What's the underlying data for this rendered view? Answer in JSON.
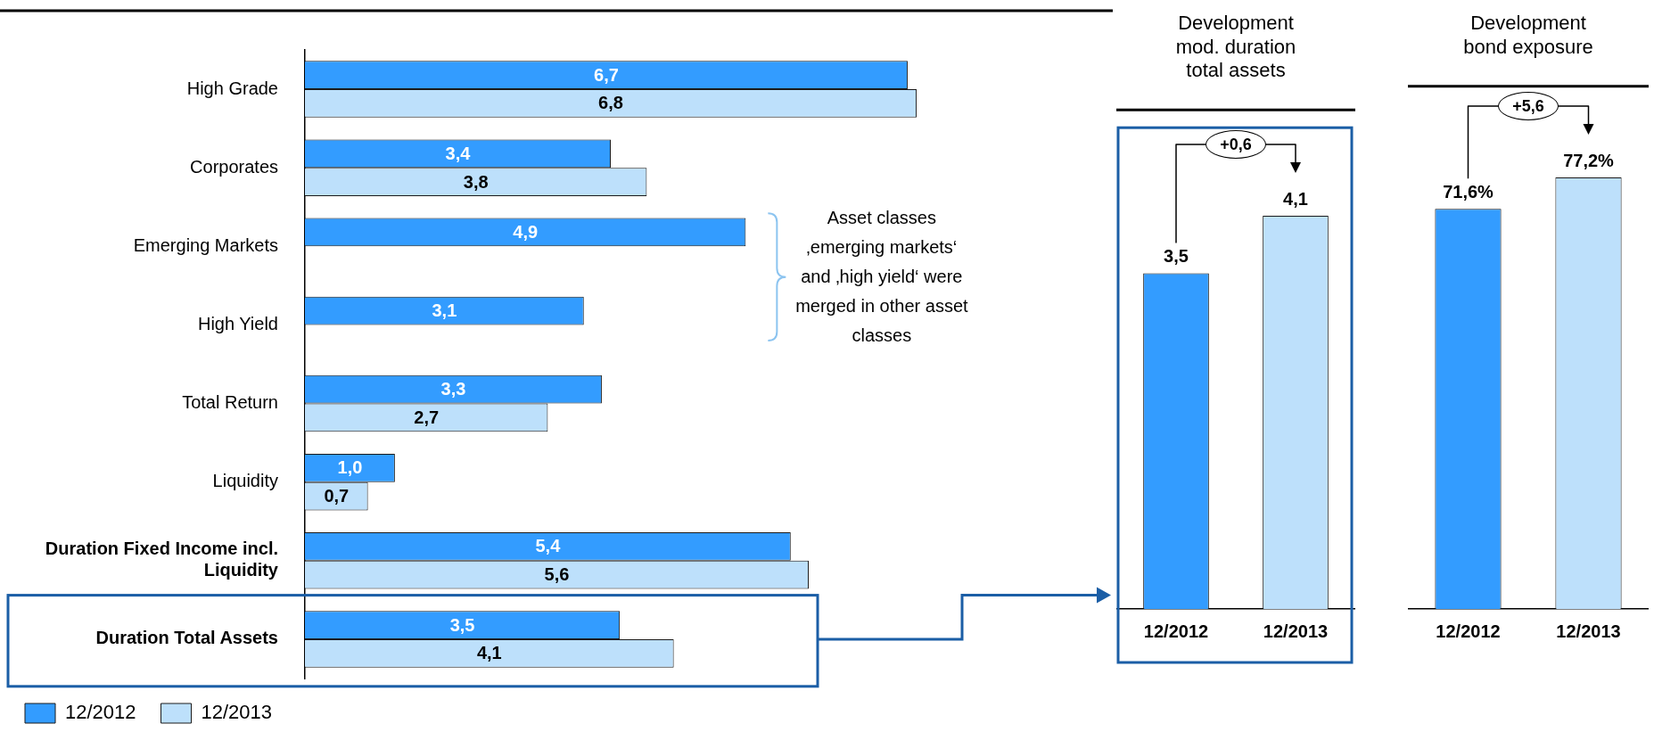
{
  "chart_data": [
    {
      "type": "bar",
      "orientation": "horizontal",
      "categories": [
        "High Grade",
        "Corporates",
        "Emerging Markets",
        "High Yield",
        "Total Return",
        "Liquidity",
        "Duration Fixed Income incl. Liquidity",
        "Duration Total Assets"
      ],
      "series": [
        {
          "name": "12/2012",
          "color": "#339cff",
          "values": [
            6.7,
            3.4,
            4.9,
            3.1,
            3.3,
            1.0,
            5.4,
            3.5
          ],
          "value_labels": [
            "6,7",
            "3,4",
            "4,9",
            "3,1",
            "3,3",
            "1,0",
            "5,4",
            "3,5"
          ]
        },
        {
          "name": "12/2013",
          "color": "#bde0fb",
          "values": [
            6.8,
            3.8,
            null,
            null,
            2.7,
            0.7,
            5.6,
            4.1
          ],
          "value_labels": [
            "6,8",
            "3,8",
            null,
            null,
            "2,7",
            "0,7",
            "5,6",
            "4,1"
          ]
        }
      ],
      "tick_labels": "y",
      "legend": "bottom left",
      "annotations": [
        "Asset classes ‚emerging markets‘ and ‚high yield‘ were merged in other asset classes"
      ]
    },
    {
      "type": "bar",
      "title": "Development mod. duration total assets",
      "categories": [
        "12/2012",
        "12/2013"
      ],
      "values": [
        3.5,
        4.1
      ],
      "colors": [
        "#339cff",
        "#bde0fb"
      ],
      "value_labels": [
        "3,5",
        "4,1"
      ],
      "tick_labels": "x",
      "annotations": [
        "+0,6"
      ]
    },
    {
      "type": "bar",
      "title": "Development bond exposure",
      "categories": [
        "12/2012",
        "12/2013"
      ],
      "values": [
        71.6,
        77.2
      ],
      "colors": [
        "#339cff",
        "#bde0fb"
      ],
      "value_labels": [
        "71,6%",
        "77,2%"
      ],
      "tick_labels": "x",
      "annotations": [
        "+5,6"
      ]
    }
  ]
}
